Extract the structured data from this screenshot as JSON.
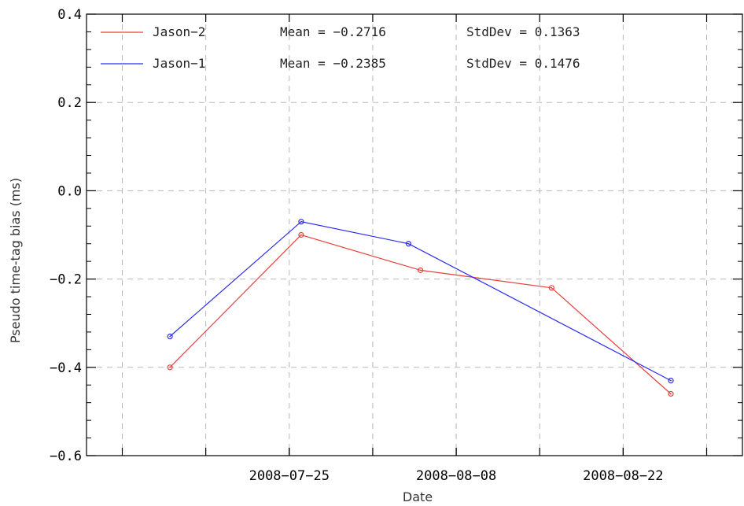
{
  "chart_data": {
    "type": "line",
    "xlabel": "Date",
    "ylabel": "Pseudo time-tag bias (ms)",
    "ylim": [
      -0.6,
      0.4
    ],
    "yticks": [
      "-0.6",
      "-0.4",
      "-0.2",
      "0.0",
      "0.2",
      "0.4"
    ],
    "xlim": [
      "2008-07-08",
      "2008-09-01"
    ],
    "xticks": [
      "2008-07-25",
      "2008-08-08",
      "2008-08-22"
    ],
    "grid": true,
    "legend_position": "top-left",
    "series": [
      {
        "name": "Jason-2",
        "color": "#e8413c",
        "marker": "circle",
        "mean_text": "Mean = −0.2716",
        "std_text": "StdDev = 0.1363",
        "x": [
          "2008-07-15",
          "2008-07-26",
          "2008-08-05",
          "2008-08-16",
          "2008-08-26"
        ],
        "values": [
          -0.4,
          -0.1,
          -0.18,
          -0.22,
          -0.46
        ]
      },
      {
        "name": "Jason-1",
        "color": "#2b2bf0",
        "marker": "circle",
        "mean_text": "Mean = −0.2385",
        "std_text": "StdDev = 0.1476",
        "x": [
          "2008-07-15",
          "2008-07-26",
          "2008-08-04",
          "2008-08-26"
        ],
        "values": [
          -0.33,
          -0.07,
          -0.12,
          -0.43
        ]
      }
    ]
  }
}
